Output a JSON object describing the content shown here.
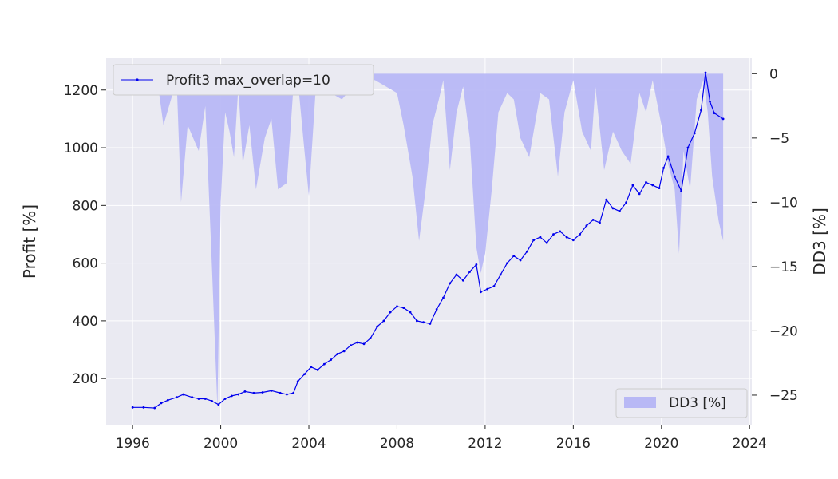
{
  "chart_data": {
    "type": "line",
    "title": "",
    "xlabel": "",
    "ylabel": "Profit [%]",
    "y2label": "DD3 [%]",
    "grid": true,
    "xlim": [
      1994.8,
      2024.1
    ],
    "ylim": [
      40,
      1310
    ],
    "y2lim": [
      -27.3,
      1.2
    ],
    "x_ticks": [
      1996,
      2000,
      2004,
      2008,
      2012,
      2016,
      2020,
      2024
    ],
    "x_tick_labels": [
      "1996",
      "2000",
      "2004",
      "2008",
      "2012",
      "2016",
      "2020",
      "2024"
    ],
    "y_ticks": [
      200,
      400,
      600,
      800,
      1000,
      1200
    ],
    "y_tick_labels": [
      "200",
      "400",
      "600",
      "800",
      "1000",
      "1200"
    ],
    "y2_ticks": [
      0,
      -5,
      -10,
      -15,
      -20,
      -25
    ],
    "y2_tick_labels": [
      "0",
      "−5",
      "−10",
      "−15",
      "−20",
      "−25"
    ],
    "legend_top_left": "top-left",
    "legend_bottom_right": "bottom-right",
    "series": [
      {
        "name": "Profit3 max_overlap=10",
        "axis": "left",
        "kind": "line",
        "color": "#0000ee",
        "x": [
          1996.0,
          1996.5,
          1997.0,
          1997.3,
          1997.6,
          1998.0,
          1998.3,
          1998.7,
          1999.0,
          1999.3,
          1999.6,
          1999.9,
          2000.2,
          2000.5,
          2000.8,
          2001.1,
          2001.5,
          2001.9,
          2002.3,
          2002.7,
          2003.0,
          2003.3,
          2003.5,
          2003.8,
          2004.1,
          2004.4,
          2004.7,
          2005.0,
          2005.3,
          2005.6,
          2005.9,
          2006.2,
          2006.5,
          2006.8,
          2007.1,
          2007.4,
          2007.7,
          2008.0,
          2008.3,
          2008.6,
          2008.9,
          2009.2,
          2009.5,
          2009.8,
          2010.1,
          2010.4,
          2010.7,
          2011.0,
          2011.3,
          2011.6,
          2011.8,
          2012.1,
          2012.4,
          2012.7,
          2013.0,
          2013.3,
          2013.6,
          2013.9,
          2014.2,
          2014.5,
          2014.8,
          2015.1,
          2015.4,
          2015.7,
          2016.0,
          2016.3,
          2016.6,
          2016.9,
          2017.2,
          2017.5,
          2017.8,
          2018.1,
          2018.4,
          2018.7,
          2019.0,
          2019.3,
          2019.6,
          2019.9,
          2020.1,
          2020.3,
          2020.6,
          2020.9,
          2021.2,
          2021.5,
          2021.8,
          2022.0,
          2022.2,
          2022.4,
          2022.8
        ],
        "y": [
          100,
          100,
          98,
          115,
          125,
          135,
          145,
          135,
          130,
          130,
          122,
          110,
          130,
          140,
          145,
          155,
          150,
          152,
          158,
          150,
          145,
          150,
          190,
          215,
          240,
          230,
          250,
          265,
          285,
          295,
          315,
          325,
          320,
          340,
          380,
          400,
          430,
          450,
          445,
          430,
          400,
          395,
          390,
          440,
          480,
          530,
          560,
          540,
          570,
          595,
          500,
          510,
          520,
          560,
          600,
          625,
          610,
          640,
          680,
          690,
          670,
          700,
          710,
          690,
          680,
          700,
          730,
          750,
          740,
          820,
          790,
          780,
          810,
          870,
          840,
          880,
          870,
          860,
          930,
          970,
          900,
          850,
          1000,
          1050,
          1130,
          1260,
          1160,
          1120,
          1100
        ]
      },
      {
        "name": "DD3 [%]",
        "axis": "right",
        "kind": "area",
        "color": "#b8b8f5",
        "x": [
          1996.0,
          1997.0,
          1997.2,
          1997.4,
          1998.0,
          1998.2,
          1998.5,
          1999.0,
          1999.3,
          1999.6,
          1999.85,
          2000.0,
          2000.2,
          2000.4,
          2000.6,
          2000.8,
          2001.0,
          2001.3,
          2001.6,
          2002.0,
          2002.3,
          2002.6,
          2003.0,
          2003.3,
          2003.5,
          2003.8,
          2004.0,
          2004.3,
          2004.7,
          2005.0,
          2005.5,
          2006.0,
          2006.5,
          2007.0,
          2007.5,
          2008.0,
          2008.3,
          2008.7,
          2009.0,
          2009.3,
          2009.6,
          2009.9,
          2010.1,
          2010.4,
          2010.7,
          2011.0,
          2011.3,
          2011.6,
          2011.8,
          2012.0,
          2012.3,
          2012.6,
          2013.0,
          2013.3,
          2013.6,
          2014.0,
          2014.5,
          2014.9,
          2015.3,
          2015.6,
          2016.0,
          2016.4,
          2016.8,
          2017.0,
          2017.4,
          2017.8,
          2018.2,
          2018.6,
          2019.0,
          2019.3,
          2019.6,
          2020.0,
          2020.3,
          2020.6,
          2020.8,
          2021.0,
          2021.3,
          2021.6,
          2021.9,
          2022.1,
          2022.3,
          2022.6,
          2022.8
        ],
        "y": [
          0,
          0,
          -1.5,
          -4.0,
          -0.5,
          -10.0,
          -4.0,
          -6.0,
          -2.5,
          -15.0,
          -26.0,
          -10.0,
          -3.0,
          -4.5,
          -6.5,
          -1.0,
          -7.0,
          -4.0,
          -9.0,
          -5.0,
          -3.5,
          -9.0,
          -8.5,
          -1.0,
          -0.5,
          -6.0,
          -9.5,
          -1.5,
          -0.5,
          -1.5,
          -2.0,
          -1.0,
          -0.5,
          -0.5,
          -1.0,
          -1.5,
          -4.0,
          -8.0,
          -13.0,
          -9.0,
          -4.0,
          -2.0,
          -0.5,
          -7.5,
          -3.0,
          -1.0,
          -5.0,
          -13.5,
          -15.5,
          -14.0,
          -9.0,
          -3.0,
          -1.5,
          -2.0,
          -5.0,
          -6.5,
          -1.5,
          -2.0,
          -8.0,
          -3.0,
          -0.5,
          -4.5,
          -6.0,
          -1.0,
          -7.5,
          -4.5,
          -6.0,
          -7.0,
          -1.5,
          -3.0,
          -0.5,
          -4.0,
          -7.0,
          -9.0,
          -14.0,
          -6.0,
          -9.0,
          -2.0,
          -0.5,
          -3.0,
          -8.0,
          -11.5,
          -13.0
        ]
      }
    ]
  }
}
